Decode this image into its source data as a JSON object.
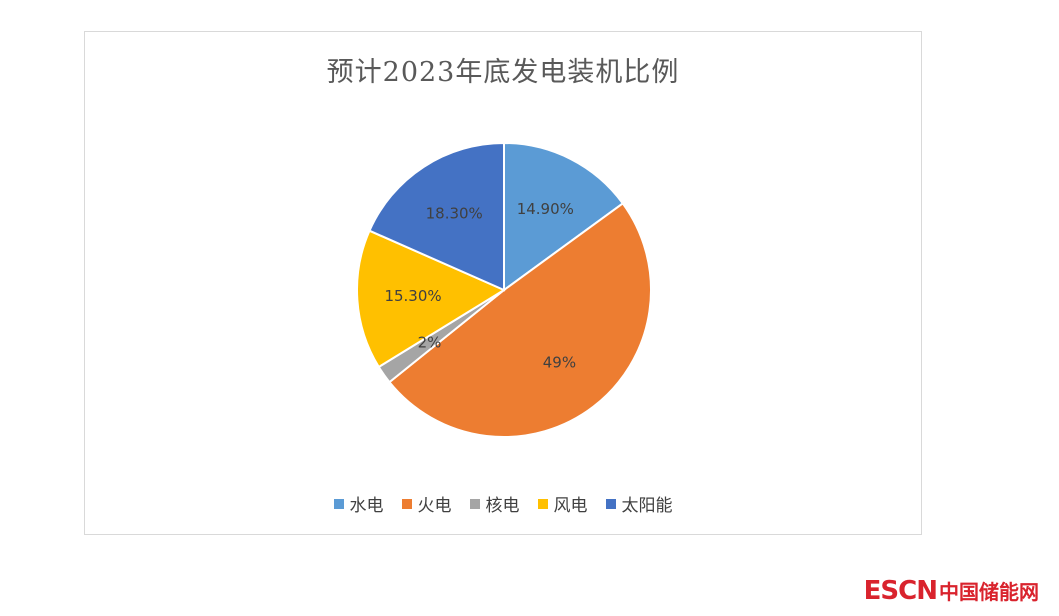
{
  "chart_data": {
    "type": "pie",
    "title": "预计2023年底发电装机比例",
    "categories": [
      "水电",
      "火电",
      "核电",
      "风电",
      "太阳能"
    ],
    "values": [
      14.9,
      49,
      2,
      15.3,
      18.3
    ],
    "data_labels": [
      "14.90%",
      "49%",
      "2%",
      "15.30%",
      "18.30%"
    ],
    "colors": [
      "#5b9bd5",
      "#ed7d31",
      "#a5a5a5",
      "#ffc000",
      "#4472c4"
    ],
    "legend_position": "bottom"
  },
  "brand": {
    "en": "ESCN",
    "cn": "中国储能网",
    "color": "#d9232d"
  }
}
